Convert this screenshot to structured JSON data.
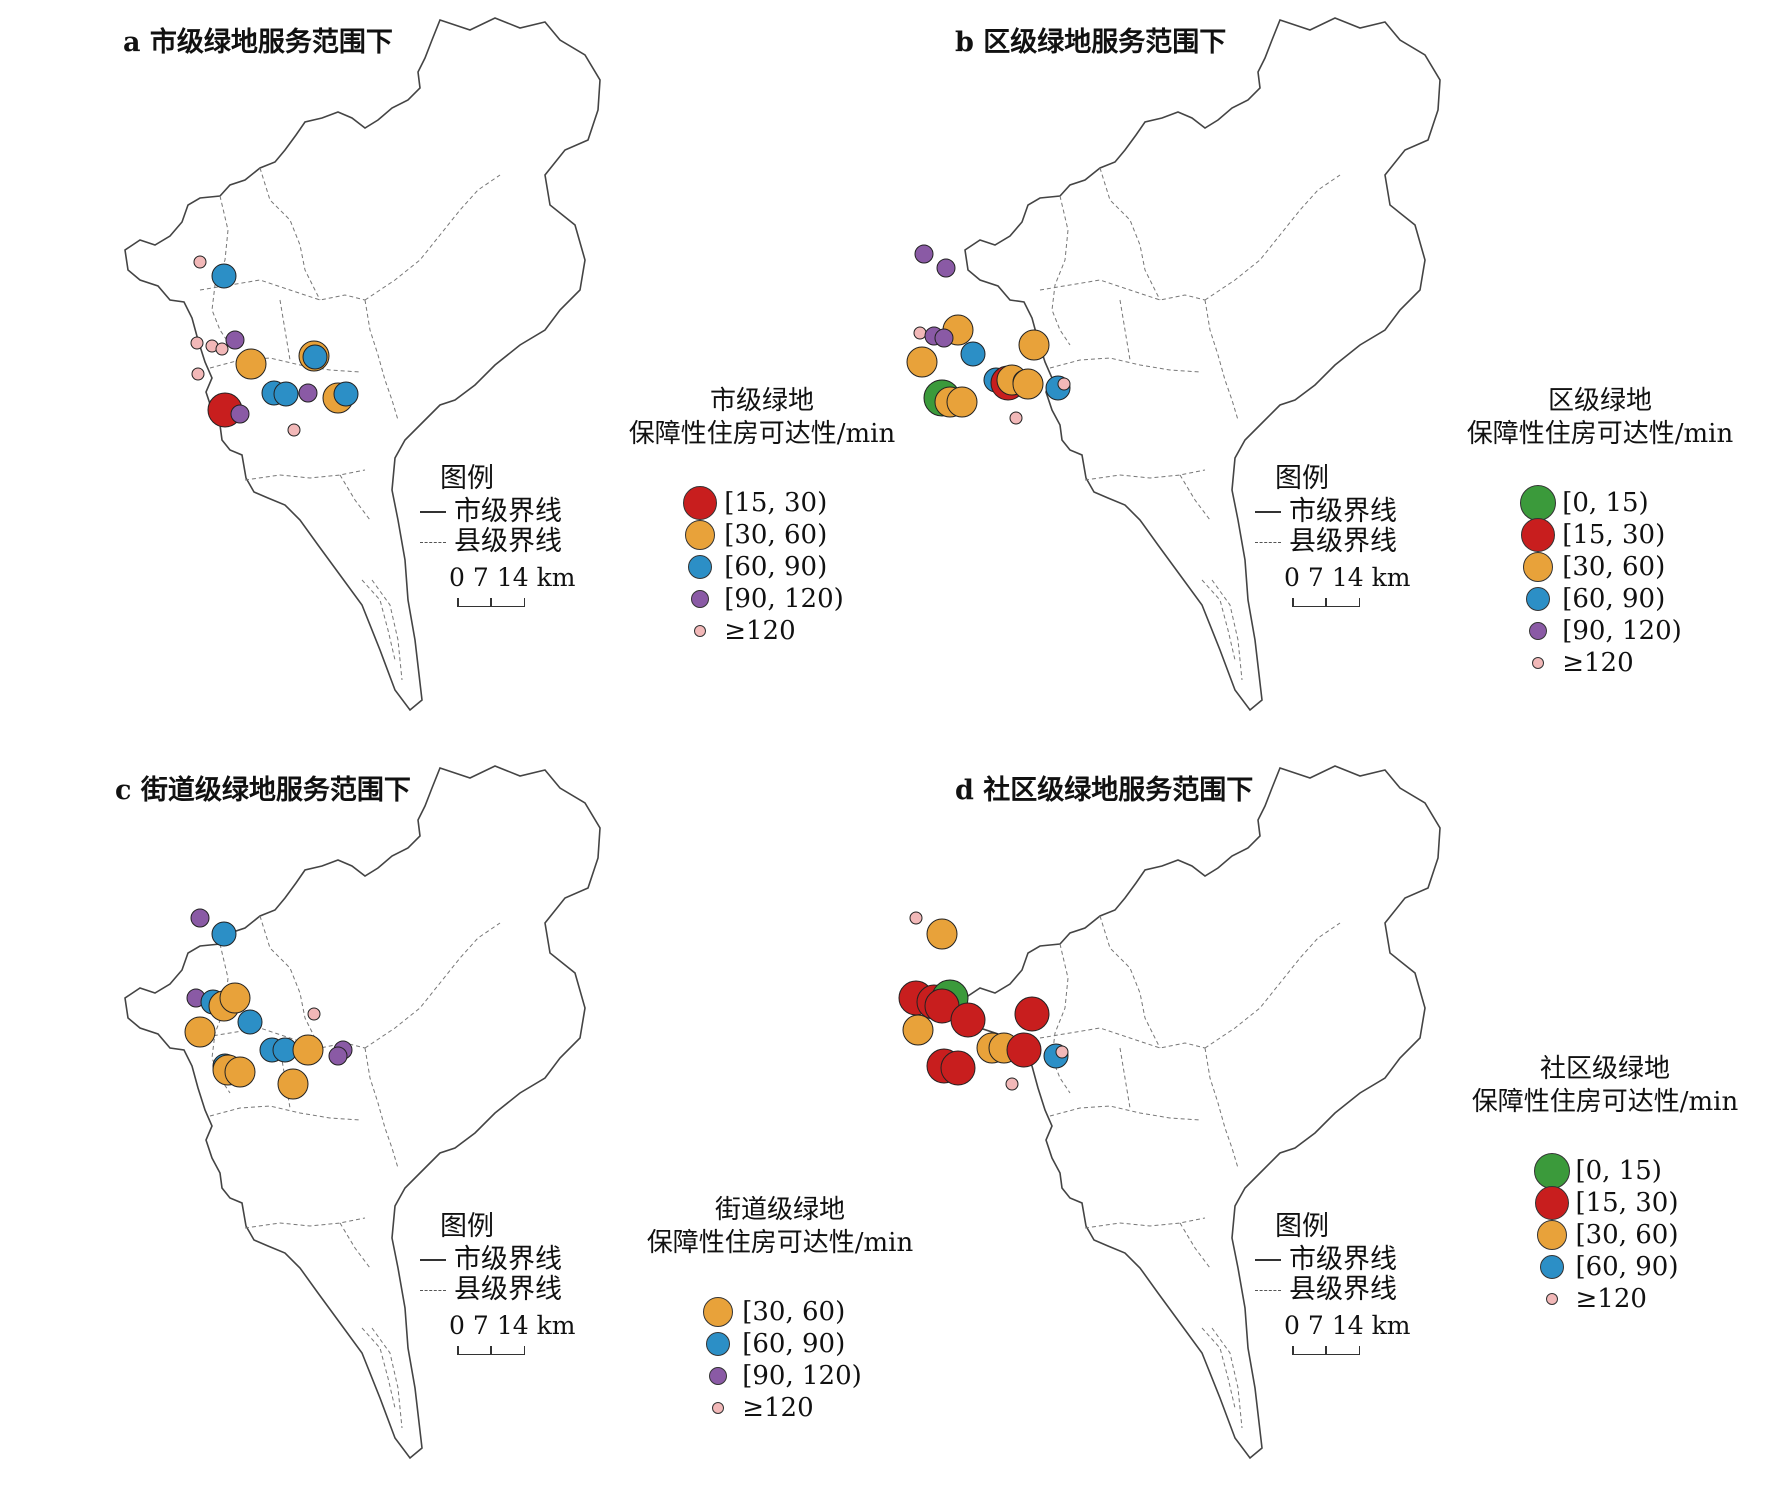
{
  "colors": {
    "c0_15": "#3b9a3b",
    "c15_30": "#c81e1e",
    "c30_60": "#e8a23a",
    "c60_90": "#2c8fc6",
    "c90_120": "#8a5aa5",
    "c120": "#f2b8b8"
  },
  "common": {
    "legend_heading": "图例",
    "city_boundary": "市级界线",
    "county_boundary": "县级界线",
    "scale_0": "0",
    "scale_7": "7",
    "scale_14": "14 km"
  },
  "panels": [
    {
      "title": "a 市级绿地服务范围下",
      "legend_title_1": "市级绿地",
      "legend_title_2": "保障性住房可达性/min",
      "legend": [
        {
          "label": "[15, 30)",
          "cls": "c15_30"
        },
        {
          "label": "[30, 60)",
          "cls": "c30_60"
        },
        {
          "label": "[60, 90)",
          "cls": "c60_90"
        },
        {
          "label": "[90, 120)",
          "cls": "c90_120"
        },
        {
          "label": "≥120",
          "cls": "c120"
        }
      ]
    },
    {
      "title": "b 区级绿地服务范围下",
      "legend_title_1": "区级绿地",
      "legend_title_2": "保障性住房可达性/min",
      "legend": [
        {
          "label": "[0, 15)",
          "cls": "c0_15"
        },
        {
          "label": "[15, 30)",
          "cls": "c15_30"
        },
        {
          "label": "[30, 60)",
          "cls": "c30_60"
        },
        {
          "label": "[60, 90)",
          "cls": "c60_90"
        },
        {
          "label": "[90, 120)",
          "cls": "c90_120"
        },
        {
          "label": "≥120",
          "cls": "c120"
        }
      ]
    },
    {
      "title": "c 街道级绿地服务范围下",
      "legend_title_1": "街道级绿地",
      "legend_title_2": "保障性住房可达性/min",
      "legend": [
        {
          "label": "[30, 60)",
          "cls": "c30_60"
        },
        {
          "label": "[60, 90)",
          "cls": "c60_90"
        },
        {
          "label": "[90, 120)",
          "cls": "c90_120"
        },
        {
          "label": "≥120",
          "cls": "c120"
        }
      ]
    },
    {
      "title": "d 社区级绿地服务范围下",
      "legend_title_1": "社区级绿地",
      "legend_title_2": "保障性住房可达性/min",
      "legend": [
        {
          "label": "[0, 15)",
          "cls": "c0_15"
        },
        {
          "label": "[15, 30)",
          "cls": "c15_30"
        },
        {
          "label": "[30, 60)",
          "cls": "c30_60"
        },
        {
          "label": "[60, 90)",
          "cls": "c60_90"
        },
        {
          "label": "≥120",
          "cls": "c120"
        }
      ]
    }
  ]
}
